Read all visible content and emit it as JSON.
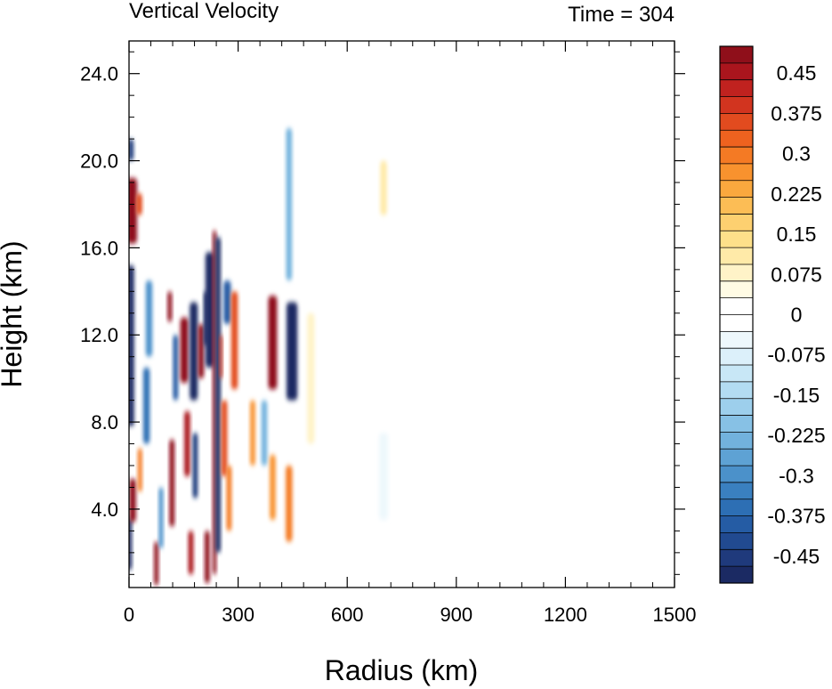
{
  "chart_data": {
    "type": "heatmap",
    "title": "Vertical Velocity",
    "time_label": "Time = 304",
    "xlabel": "Radius (km)",
    "ylabel": "Height (km)",
    "xlim": [
      0,
      1500
    ],
    "ylim": [
      0.4,
      25.5
    ],
    "x_ticks": [
      {
        "value": 0,
        "label": "0"
      },
      {
        "value": 300,
        "label": "300"
      },
      {
        "value": 600,
        "label": "600"
      },
      {
        "value": 900,
        "label": "900"
      },
      {
        "value": 1200,
        "label": "1200"
      },
      {
        "value": 1500,
        "label": "1500"
      }
    ],
    "y_ticks": [
      {
        "value": 4,
        "label": "4.0"
      },
      {
        "value": 8,
        "label": "8.0"
      },
      {
        "value": 12,
        "label": "12.0"
      },
      {
        "value": 16,
        "label": "16.0"
      },
      {
        "value": 20,
        "label": "20.0"
      },
      {
        "value": 24,
        "label": "24.0"
      }
    ],
    "colorbar": {
      "levels_min": -0.5,
      "levels_max": 0.5,
      "colors": [
        "#1b2a63",
        "#1f3a7c",
        "#214a90",
        "#255ca4",
        "#2d6fb4",
        "#3a80c0",
        "#4b91ca",
        "#5ea2d4",
        "#72b2dd",
        "#87c1e5",
        "#9dcfec",
        "#b3dcf2",
        "#c8e7f6",
        "#dcf0fa",
        "#eef8fc",
        "#ffffff",
        "#ffffff",
        "#fffbe4",
        "#fff3c8",
        "#ffeaa8",
        "#fde08a",
        "#fdd070",
        "#fcbd55",
        "#faa83e",
        "#f8922e",
        "#f47a24",
        "#ee621f",
        "#e24b1f",
        "#d2341f",
        "#c0221f",
        "#aa151d",
        "#8f0f1a"
      ],
      "labels": [
        {
          "value": 0.45,
          "label": "0.45"
        },
        {
          "value": 0.375,
          "label": "0.375"
        },
        {
          "value": 0.3,
          "label": "0.3"
        },
        {
          "value": 0.225,
          "label": "0.225"
        },
        {
          "value": 0.15,
          "label": "0.15"
        },
        {
          "value": 0.075,
          "label": "0.075"
        },
        {
          "value": 0,
          "label": "0"
        },
        {
          "value": -0.075,
          "label": "-0.075"
        },
        {
          "value": -0.15,
          "label": "-0.15"
        },
        {
          "value": -0.225,
          "label": "-0.225"
        },
        {
          "value": -0.3,
          "label": "-0.3"
        },
        {
          "value": -0.375,
          "label": "-0.375"
        },
        {
          "value": -0.45,
          "label": "-0.45"
        }
      ]
    },
    "features": [
      {
        "x": 5,
        "w": 18,
        "y0": 7.8,
        "y1": 15.2,
        "v": -0.6
      },
      {
        "x": 2,
        "w": 12,
        "y0": 1.2,
        "y1": 3.6,
        "v": -0.5
      },
      {
        "x": 8,
        "w": 28,
        "y0": 16.2,
        "y1": 19.2,
        "v": 0.55
      },
      {
        "x": 5,
        "w": 15,
        "y0": 20.0,
        "y1": 21.0,
        "v": -0.45
      },
      {
        "x": 28,
        "w": 16,
        "y0": 17.5,
        "y1": 18.5,
        "v": 0.35
      },
      {
        "x": 10,
        "w": 18,
        "y0": 3.4,
        "y1": 5.4,
        "v": 0.55
      },
      {
        "x": 30,
        "w": 12,
        "y0": 4.8,
        "y1": 6.8,
        "v": 0.3
      },
      {
        "x": 48,
        "w": 18,
        "y0": 7.0,
        "y1": 10.5,
        "v": -0.35
      },
      {
        "x": 55,
        "w": 18,
        "y0": 11.0,
        "y1": 14.5,
        "v": -0.3
      },
      {
        "x": 75,
        "w": 12,
        "y0": 0.5,
        "y1": 2.5,
        "v": 0.55
      },
      {
        "x": 88,
        "w": 12,
        "y0": 2.2,
        "y1": 5.0,
        "v": -0.3
      },
      {
        "x": 118,
        "w": 14,
        "y0": 3.2,
        "y1": 7.2,
        "v": 0.55
      },
      {
        "x": 112,
        "w": 12,
        "y0": 12.6,
        "y1": 14.0,
        "v": 0.5
      },
      {
        "x": 128,
        "w": 14,
        "y0": 9.0,
        "y1": 12.0,
        "v": -0.4
      },
      {
        "x": 152,
        "w": 22,
        "y0": 9.8,
        "y1": 12.8,
        "v": 0.6
      },
      {
        "x": 160,
        "w": 16,
        "y0": 5.5,
        "y1": 8.5,
        "v": 0.45
      },
      {
        "x": 178,
        "w": 22,
        "y0": 9.0,
        "y1": 13.5,
        "v": -0.55
      },
      {
        "x": 182,
        "w": 14,
        "y0": 4.5,
        "y1": 7.5,
        "v": -0.45
      },
      {
        "x": 170,
        "w": 14,
        "y0": 1.0,
        "y1": 3.0,
        "v": 0.45
      },
      {
        "x": 198,
        "w": 16,
        "y0": 10.0,
        "y1": 12.5,
        "v": 0.55
      },
      {
        "x": 212,
        "w": 12,
        "y0": 11.5,
        "y1": 14.0,
        "v": -0.5
      },
      {
        "x": 222,
        "w": 24,
        "y0": 10.5,
        "y1": 15.8,
        "v": -0.65
      },
      {
        "x": 215,
        "w": 14,
        "y0": 0.6,
        "y1": 3.0,
        "v": 0.6
      },
      {
        "x": 235,
        "w": 10,
        "y0": 1.0,
        "y1": 16.8,
        "v": 0.65
      },
      {
        "x": 245,
        "w": 14,
        "y0": 2.0,
        "y1": 16.5,
        "v": -0.65
      },
      {
        "x": 253,
        "w": 8,
        "y0": 10.0,
        "y1": 12.0,
        "v": 0.4
      },
      {
        "x": 262,
        "w": 16,
        "y0": 5.5,
        "y1": 9.0,
        "v": 0.35
      },
      {
        "x": 270,
        "w": 20,
        "y0": 12.5,
        "y1": 14.5,
        "v": -0.4
      },
      {
        "x": 290,
        "w": 18,
        "y0": 9.5,
        "y1": 14.0,
        "v": 0.35
      },
      {
        "x": 275,
        "w": 14,
        "y0": 3.0,
        "y1": 6.0,
        "v": 0.3
      },
      {
        "x": 340,
        "w": 14,
        "y0": 6.0,
        "y1": 9.0,
        "v": 0.25
      },
      {
        "x": 372,
        "w": 16,
        "y0": 6.0,
        "y1": 9.0,
        "v": -0.25
      },
      {
        "x": 395,
        "w": 24,
        "y0": 9.5,
        "y1": 13.8,
        "v": 0.55
      },
      {
        "x": 395,
        "w": 16,
        "y0": 3.5,
        "y1": 6.5,
        "v": 0.25
      },
      {
        "x": 448,
        "w": 30,
        "y0": 9.0,
        "y1": 13.5,
        "v": -0.6
      },
      {
        "x": 440,
        "w": 16,
        "y0": 14.5,
        "y1": 21.5,
        "v": -0.25
      },
      {
        "x": 440,
        "w": 18,
        "y0": 2.5,
        "y1": 6.0,
        "v": 0.3
      },
      {
        "x": 500,
        "w": 20,
        "y0": 7.0,
        "y1": 13.0,
        "v": 0.08
      },
      {
        "x": 700,
        "w": 18,
        "y0": 17.5,
        "y1": 20.0,
        "v": 0.1
      },
      {
        "x": 700,
        "w": 25,
        "y0": 3.5,
        "y1": 7.5,
        "v": -0.06
      }
    ]
  }
}
